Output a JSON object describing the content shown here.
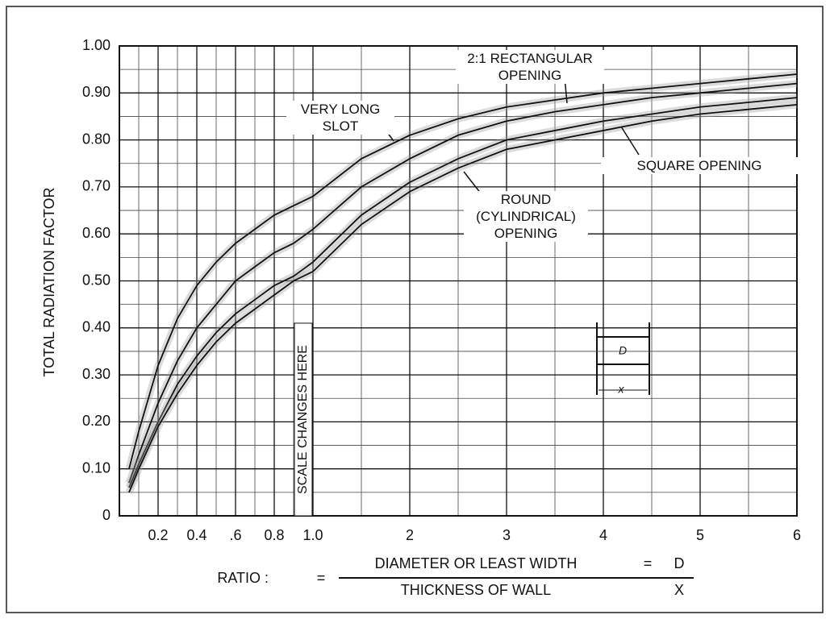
{
  "chart_data": {
    "type": "line",
    "y_label": "TOTAL RADIATION FACTOR",
    "x_label": {
      "prefix": "RATIO :",
      "equals": "=",
      "numerator": "DIAMETER OR LEAST WIDTH",
      "num_symbol": "D",
      "denominator": "THICKNESS OF WALL",
      "den_symbol": "X"
    },
    "annotation": "SCALE CHANGES HERE",
    "inset": {
      "d": "D",
      "x": "x"
    },
    "x_scale_break": 1,
    "x": [
      0.05,
      0.1,
      0.2,
      0.3,
      0.4,
      0.5,
      0.6,
      0.7,
      0.8,
      0.9,
      1,
      1.5,
      2,
      2.5,
      3,
      3.5,
      4,
      4.5,
      5,
      5.5,
      6
    ],
    "series": [
      {
        "name": "VERY LONG SLOT",
        "color": "#111111",
        "values": [
          0.1,
          0.18,
          0.32,
          0.42,
          0.49,
          0.54,
          0.58,
          0.61,
          0.64,
          0.66,
          0.68,
          0.76,
          0.81,
          0.845,
          0.87,
          0.885,
          0.9,
          0.91,
          0.92,
          0.93,
          0.94
        ]
      },
      {
        "name": "2:1 RECTANGULAR OPENING",
        "color": "#111111",
        "values": [
          0.07,
          0.13,
          0.24,
          0.33,
          0.4,
          0.45,
          0.5,
          0.53,
          0.56,
          0.58,
          0.61,
          0.7,
          0.76,
          0.81,
          0.84,
          0.86,
          0.875,
          0.89,
          0.9,
          0.91,
          0.92
        ]
      },
      {
        "name": "SQUARE OPENING",
        "color": "#111111",
        "values": [
          0.06,
          0.11,
          0.2,
          0.28,
          0.34,
          0.39,
          0.43,
          0.46,
          0.49,
          0.51,
          0.54,
          0.64,
          0.71,
          0.76,
          0.8,
          0.82,
          0.84,
          0.855,
          0.87,
          0.88,
          0.89
        ]
      },
      {
        "name": "ROUND (CYLINDRICAL) OPENING",
        "color": "#111111",
        "values": [
          0.05,
          0.1,
          0.19,
          0.26,
          0.32,
          0.37,
          0.41,
          0.44,
          0.47,
          0.5,
          0.52,
          0.62,
          0.69,
          0.74,
          0.78,
          0.8,
          0.82,
          0.84,
          0.855,
          0.865,
          0.875
        ]
      }
    ],
    "xlim": [
      0,
      6
    ],
    "xticks": [
      0.2,
      0.4,
      {
        "value": 0.6,
        "label": ".6"
      },
      0.8,
      {
        "value": 1,
        "label": "1.0"
      },
      2,
      3,
      4,
      5,
      6
    ],
    "x_minor_ticks": [
      0.1,
      0.3,
      0.5,
      0.7,
      0.9,
      1.5,
      2.5,
      3.5,
      4.5,
      5.5
    ],
    "ylim": [
      0,
      1
    ],
    "yticks": [
      0,
      {
        "value": 0.1,
        "label": "0.10"
      },
      {
        "value": 0.2,
        "label": "0.20"
      },
      {
        "value": 0.3,
        "label": "0.30"
      },
      {
        "value": 0.4,
        "label": "0.40"
      },
      {
        "value": 0.5,
        "label": "0.50"
      },
      {
        "value": 0.6,
        "label": "0.60"
      },
      {
        "value": 0.7,
        "label": "0.70"
      },
      {
        "value": 0.8,
        "label": "0.80"
      },
      {
        "value": 0.9,
        "label": "0.90"
      },
      {
        "value": 1,
        "label": "1.00"
      }
    ],
    "y_minor_ticks": [
      0.05,
      0.15,
      0.25,
      0.35,
      0.45,
      0.55,
      0.65,
      0.75,
      0.85,
      0.95
    ],
    "grid": true
  }
}
